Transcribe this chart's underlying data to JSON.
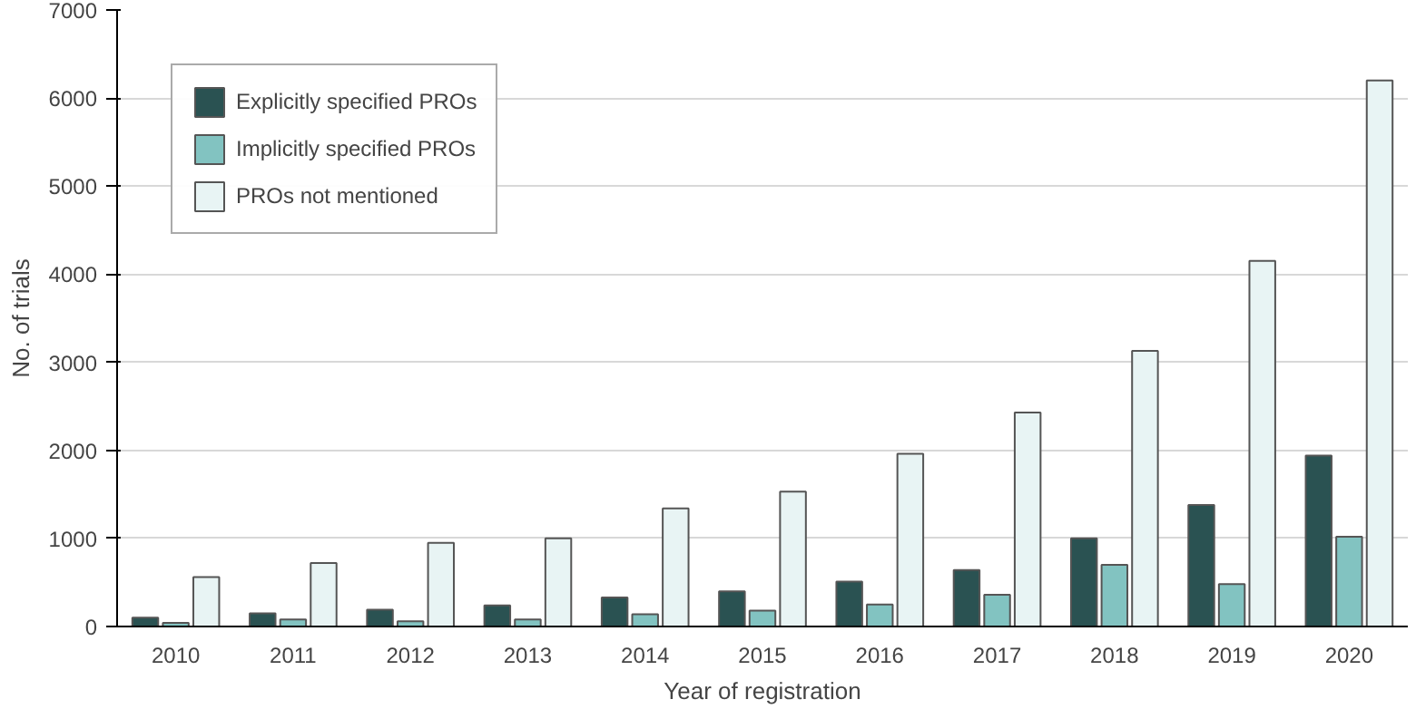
{
  "chart_data": {
    "type": "bar",
    "xlabel": "Year of registration",
    "ylabel": "No. of trials",
    "categories": [
      "2010",
      "2011",
      "2012",
      "2013",
      "2014",
      "2015",
      "2016",
      "2017",
      "2018",
      "2019",
      "2020"
    ],
    "series": [
      {
        "name": "Explicitly specified PROs",
        "color": "#2a5252",
        "values": [
          100,
          150,
          190,
          240,
          330,
          400,
          510,
          640,
          1000,
          1380,
          1940
        ]
      },
      {
        "name": "Implicitly specified PROs",
        "color": "#82c3c1",
        "values": [
          40,
          80,
          60,
          80,
          140,
          180,
          250,
          360,
          700,
          480,
          1020
        ]
      },
      {
        "name": "PROs not mentioned",
        "color": "#e8f4f4",
        "values": [
          560,
          720,
          950,
          1000,
          1340,
          1530,
          1960,
          2430,
          3130,
          4150,
          6200
        ]
      }
    ],
    "ylim": [
      0,
      7000
    ],
    "yticks": [
      0,
      1000,
      2000,
      3000,
      4000,
      5000,
      6000,
      7000
    ],
    "grid": "y",
    "legend": "top left"
  }
}
